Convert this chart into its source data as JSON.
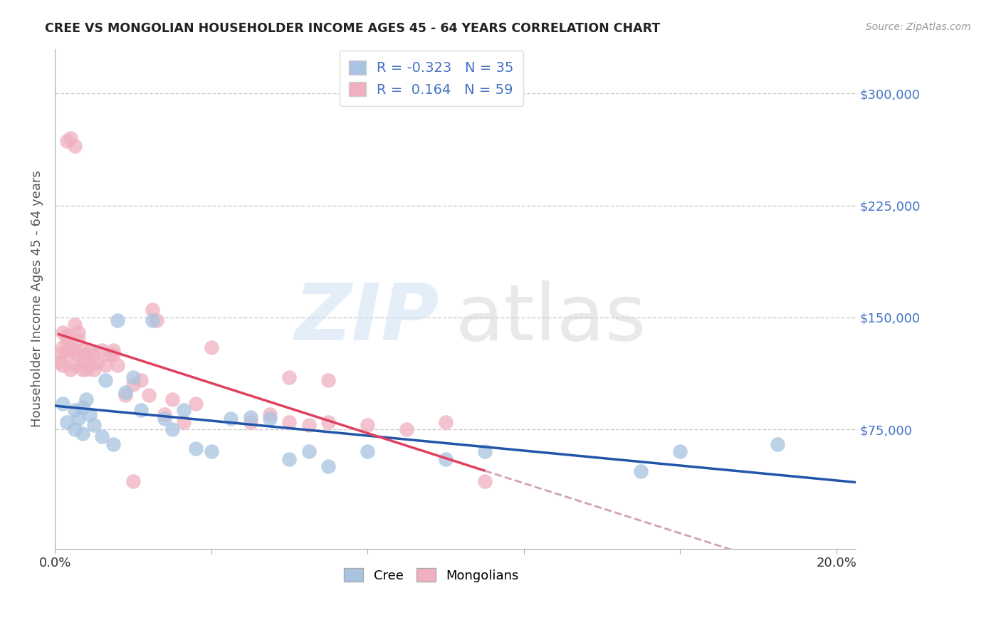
{
  "title": "CREE VS MONGOLIAN HOUSEHOLDER INCOME AGES 45 - 64 YEARS CORRELATION CHART",
  "source": "Source: ZipAtlas.com",
  "ylabel": "Householder Income Ages 45 - 64 years",
  "xlim": [
    0.0,
    0.205
  ],
  "ylim": [
    -5000,
    330000
  ],
  "xticks": [
    0.0,
    0.04,
    0.08,
    0.12,
    0.16,
    0.2
  ],
  "xticklabels": [
    "0.0%",
    "",
    "",
    "",
    "",
    "20.0%"
  ],
  "ytick_values": [
    75000,
    150000,
    225000,
    300000
  ],
  "ytick_labels": [
    "$75,000",
    "$150,000",
    "$225,000",
    "$300,000"
  ],
  "cree_color": "#a8c4e0",
  "mongolian_color": "#f0b0c0",
  "cree_line_color": "#2255aa",
  "mongolian_line_color": "#e04060",
  "legend_cree_r": "-0.323",
  "legend_cree_n": "35",
  "legend_mongolian_r": "0.164",
  "legend_mongolian_n": "59",
  "cree_scatter_x": [
    0.002,
    0.003,
    0.005,
    0.005,
    0.006,
    0.007,
    0.007,
    0.008,
    0.009,
    0.01,
    0.012,
    0.013,
    0.015,
    0.016,
    0.018,
    0.02,
    0.022,
    0.025,
    0.028,
    0.03,
    0.033,
    0.036,
    0.04,
    0.045,
    0.05,
    0.055,
    0.06,
    0.065,
    0.07,
    0.08,
    0.1,
    0.11,
    0.15,
    0.16,
    0.185
  ],
  "cree_scatter_y": [
    92000,
    80000,
    88000,
    75000,
    82000,
    90000,
    72000,
    95000,
    85000,
    78000,
    70000,
    108000,
    65000,
    148000,
    100000,
    110000,
    88000,
    148000,
    82000,
    75000,
    88000,
    62000,
    60000,
    82000,
    83000,
    82000,
    55000,
    60000,
    50000,
    60000,
    55000,
    60000,
    47000,
    60000,
    65000
  ],
  "mongolian_scatter_x": [
    0.001,
    0.001,
    0.002,
    0.002,
    0.002,
    0.003,
    0.003,
    0.003,
    0.003,
    0.004,
    0.004,
    0.005,
    0.005,
    0.005,
    0.006,
    0.006,
    0.006,
    0.007,
    0.007,
    0.007,
    0.008,
    0.008,
    0.009,
    0.009,
    0.01,
    0.01,
    0.011,
    0.012,
    0.013,
    0.014,
    0.015,
    0.016,
    0.018,
    0.02,
    0.022,
    0.024,
    0.025,
    0.026,
    0.028,
    0.03,
    0.033,
    0.036,
    0.04,
    0.05,
    0.055,
    0.06,
    0.065,
    0.07,
    0.08,
    0.09,
    0.1,
    0.11,
    0.06,
    0.07,
    0.003,
    0.004,
    0.005,
    0.015,
    0.02
  ],
  "mongolian_scatter_y": [
    125000,
    120000,
    130000,
    118000,
    140000,
    138000,
    125000,
    128000,
    135000,
    115000,
    130000,
    145000,
    128000,
    118000,
    135000,
    125000,
    140000,
    120000,
    115000,
    128000,
    115000,
    125000,
    118000,
    128000,
    125000,
    115000,
    120000,
    128000,
    118000,
    125000,
    128000,
    118000,
    98000,
    105000,
    108000,
    98000,
    155000,
    148000,
    85000,
    95000,
    80000,
    92000,
    130000,
    80000,
    85000,
    80000,
    78000,
    80000,
    78000,
    75000,
    80000,
    40000,
    110000,
    108000,
    268000,
    270000,
    265000,
    125000,
    40000
  ],
  "background_color": "#ffffff"
}
